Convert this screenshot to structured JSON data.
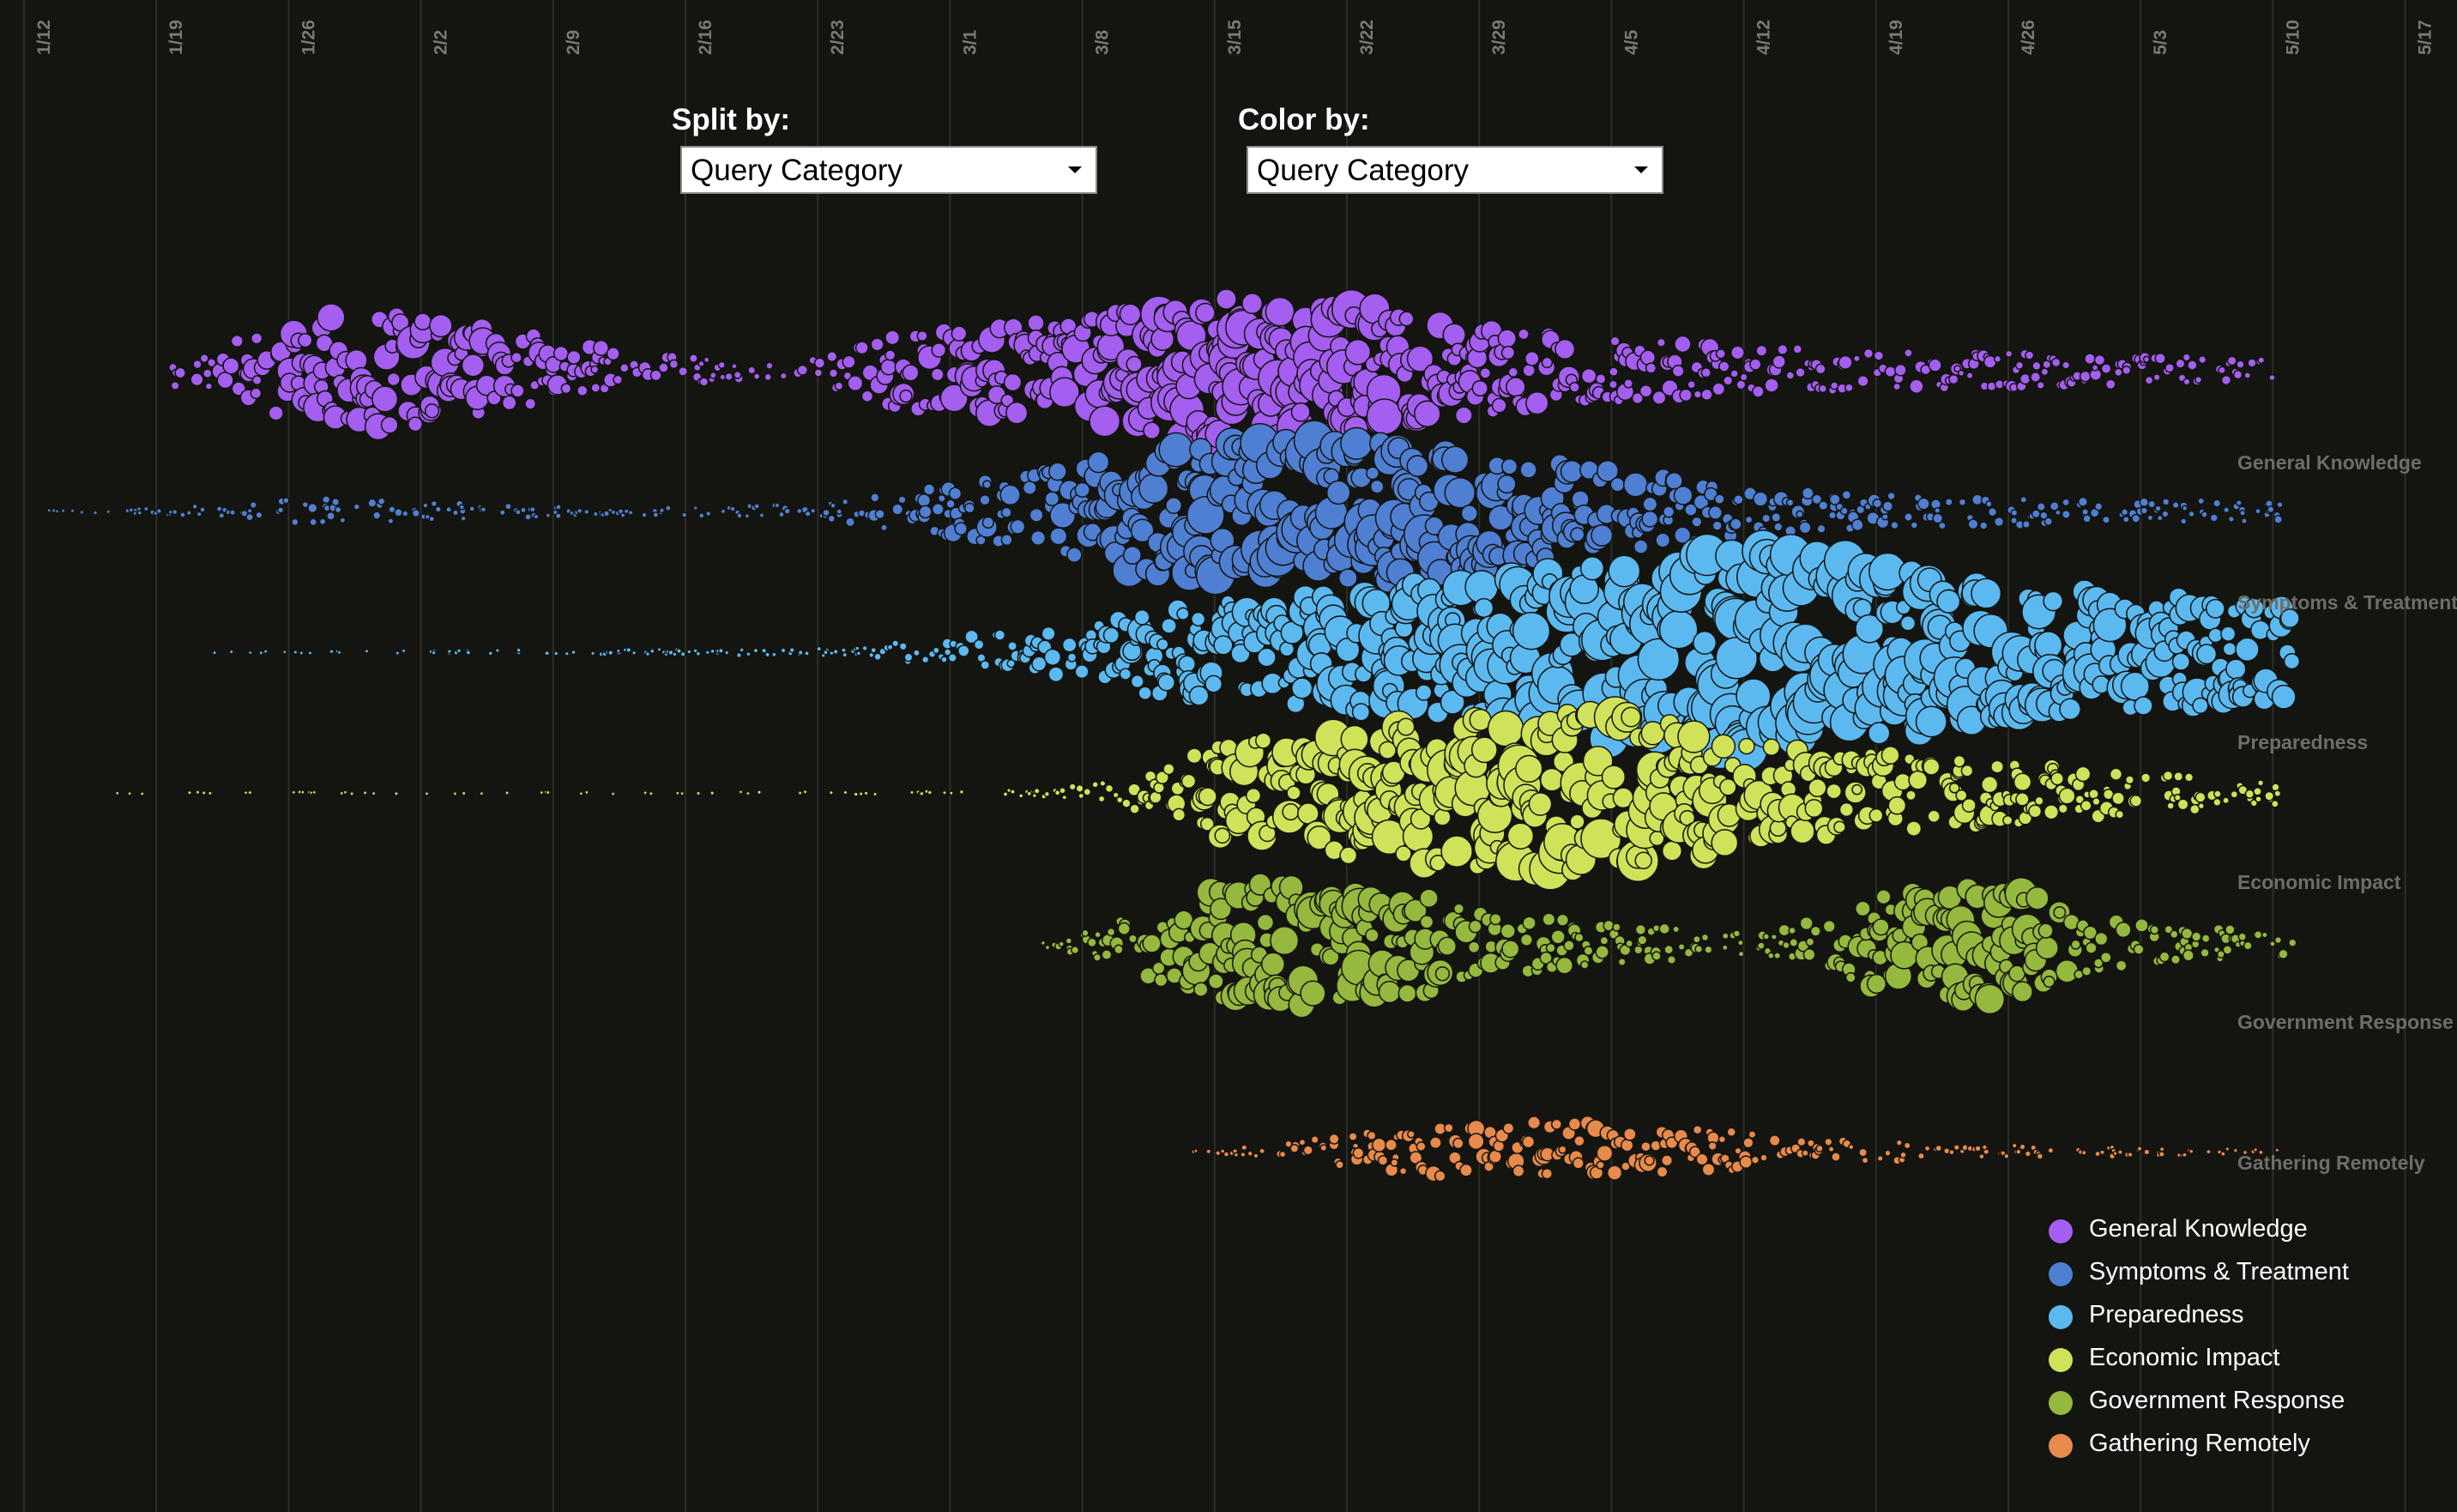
{
  "controls": {
    "split_label": "Split by:",
    "split_value": "Query Category",
    "color_label": "Color by:",
    "color_value": "Query Category"
  },
  "chart_data": {
    "type": "scatter",
    "subtype": "beeswarm",
    "x_axis": {
      "type": "date",
      "tick_labels": [
        "1/12",
        "1/19",
        "1/26",
        "2/2",
        "2/9",
        "2/16",
        "2/23",
        "3/1",
        "3/8",
        "3/15",
        "3/22",
        "3/29",
        "4/5",
        "4/12",
        "4/19",
        "4/26",
        "5/3",
        "5/10",
        "5/17"
      ],
      "range": [
        "1/12",
        "5/17"
      ],
      "label_position": "top",
      "grid": true
    },
    "legend_position": "bottom-right",
    "series": [
      {
        "name": "General Knowledge",
        "color": "#a45ef0",
        "activity": [
          [
            1.0,
            0.75
          ],
          [
            1.5,
            1.6
          ],
          [
            2.0,
            2.7
          ],
          [
            2.5,
            3.0
          ],
          [
            3.0,
            2.9
          ],
          [
            3.5,
            2.2
          ],
          [
            4.0,
            1.6
          ],
          [
            4.5,
            1.0
          ],
          [
            5.0,
            0.7
          ],
          [
            5.5,
            0.5
          ],
          [
            6.0,
            0.9
          ],
          [
            6.5,
            1.9
          ],
          [
            7.0,
            2.4
          ],
          [
            7.5,
            2.5
          ],
          [
            8.0,
            2.9
          ],
          [
            8.5,
            3.5
          ],
          [
            9.0,
            3.8
          ],
          [
            9.5,
            3.9
          ],
          [
            10.0,
            3.5
          ],
          [
            10.5,
            2.8
          ],
          [
            11.0,
            2.2
          ],
          [
            11.5,
            1.9
          ],
          [
            12.0,
            1.6
          ],
          [
            12.5,
            1.4
          ],
          [
            13.0,
            1.3
          ],
          [
            13.5,
            1.1
          ],
          [
            14.0,
            1.0
          ],
          [
            14.5,
            0.95
          ],
          [
            15.0,
            0.9
          ],
          [
            15.5,
            0.85
          ],
          [
            16.0,
            0.8
          ],
          [
            16.5,
            0.7
          ],
          [
            16.95,
            0.55
          ]
        ]
      },
      {
        "name": "Symptoms & Treatment",
        "color": "#4f7fd2",
        "activity": [
          [
            0.1,
            0.05
          ],
          [
            0.6,
            0.1
          ],
          [
            1.0,
            0.2
          ],
          [
            1.5,
            0.35
          ],
          [
            2.0,
            0.65
          ],
          [
            2.5,
            0.6
          ],
          [
            3.0,
            0.45
          ],
          [
            3.5,
            0.35
          ],
          [
            4.0,
            0.25
          ],
          [
            4.5,
            0.2
          ],
          [
            5.0,
            0.25
          ],
          [
            5.5,
            0.3
          ],
          [
            6.0,
            0.45
          ],
          [
            6.5,
            1.0
          ],
          [
            7.0,
            1.5
          ],
          [
            7.5,
            2.0
          ],
          [
            8.0,
            2.8
          ],
          [
            8.5,
            3.5
          ],
          [
            9.0,
            3.7
          ],
          [
            9.5,
            3.8
          ],
          [
            10.0,
            3.7
          ],
          [
            10.5,
            3.5
          ],
          [
            11.0,
            3.0
          ],
          [
            11.5,
            2.6
          ],
          [
            12.0,
            2.1
          ],
          [
            12.5,
            1.6
          ],
          [
            13.0,
            1.2
          ],
          [
            13.5,
            1.0
          ],
          [
            14.0,
            0.9
          ],
          [
            14.5,
            0.8
          ],
          [
            15.0,
            0.7
          ],
          [
            15.5,
            0.6
          ],
          [
            16.0,
            0.55
          ],
          [
            16.5,
            0.55
          ],
          [
            17.0,
            0.5
          ]
        ]
      },
      {
        "name": "Preparedness",
        "color": "#5cb9f0",
        "activity": [
          [
            1.15,
            0.05
          ],
          [
            1.6,
            0.05
          ],
          [
            2.05,
            0.05
          ],
          [
            6.2,
            0.2
          ],
          [
            6.5,
            0.5
          ],
          [
            7.0,
            0.9
          ],
          [
            7.5,
            1.2
          ],
          [
            8.0,
            1.7
          ],
          [
            8.5,
            2.4
          ],
          [
            9.0,
            2.7
          ],
          [
            9.5,
            2.9
          ],
          [
            10.0,
            3.3
          ],
          [
            10.5,
            3.6
          ],
          [
            11.0,
            4.0
          ],
          [
            11.5,
            4.5
          ],
          [
            12.0,
            5.0
          ],
          [
            12.5,
            5.6
          ],
          [
            13.0,
            5.6
          ],
          [
            13.5,
            5.1
          ],
          [
            14.0,
            4.4
          ],
          [
            14.5,
            3.9
          ],
          [
            15.0,
            3.5
          ],
          [
            15.5,
            3.3
          ],
          [
            16.0,
            3.0
          ],
          [
            16.5,
            2.8
          ],
          [
            17.05,
            2.5
          ]
        ]
      },
      {
        "name": "Economic Impact",
        "color": "#cfe25a",
        "activity": [
          [
            0.6,
            0.05
          ],
          [
            1.3,
            0.05
          ],
          [
            2.0,
            0.05
          ],
          [
            2.6,
            0.05
          ],
          [
            3.1,
            0.05
          ],
          [
            3.6,
            0.05
          ],
          [
            4.1,
            0.05
          ],
          [
            4.6,
            0.05
          ],
          [
            5.0,
            0.05
          ],
          [
            7.25,
            0.1
          ],
          [
            7.8,
            0.3
          ],
          [
            8.2,
            0.7
          ],
          [
            8.5,
            1.5
          ],
          [
            9.0,
            2.6
          ],
          [
            9.5,
            3.0
          ],
          [
            10.0,
            3.5
          ],
          [
            10.5,
            3.8
          ],
          [
            11.0,
            3.9
          ],
          [
            11.5,
            4.2
          ],
          [
            12.0,
            4.1
          ],
          [
            12.5,
            3.5
          ],
          [
            13.0,
            2.8
          ],
          [
            13.5,
            2.3
          ],
          [
            14.0,
            2.0
          ],
          [
            14.5,
            1.8
          ],
          [
            15.0,
            1.6
          ],
          [
            15.5,
            1.3
          ],
          [
            16.0,
            1.0
          ],
          [
            16.5,
            0.8
          ],
          [
            16.95,
            0.6
          ]
        ]
      },
      {
        "name": "Government Response",
        "color": "#95b83e",
        "activity": [
          [
            7.6,
            0.2
          ],
          [
            8.0,
            0.8
          ],
          [
            8.5,
            2.0
          ],
          [
            9.0,
            3.0
          ],
          [
            9.5,
            3.4
          ],
          [
            10.0,
            3.2
          ],
          [
            10.5,
            2.6
          ],
          [
            11.0,
            1.6
          ],
          [
            11.5,
            1.4
          ],
          [
            12.0,
            1.0
          ],
          [
            12.5,
            0.8
          ],
          [
            13.0,
            0.5
          ],
          [
            13.5,
            1.3
          ],
          [
            14.0,
            2.6
          ],
          [
            14.5,
            3.1
          ],
          [
            15.0,
            2.9
          ],
          [
            15.5,
            1.5
          ],
          [
            16.0,
            1.0
          ],
          [
            16.5,
            0.8
          ],
          [
            17.05,
            0.6
          ]
        ]
      },
      {
        "name": "Gathering Remotely",
        "color": "#e78a4b",
        "activity": [
          [
            8.7,
            0.05
          ],
          [
            9.2,
            0.3
          ],
          [
            9.7,
            0.7
          ],
          [
            10.2,
            1.1
          ],
          [
            10.7,
            1.4
          ],
          [
            11.2,
            1.6
          ],
          [
            11.7,
            1.6
          ],
          [
            12.2,
            1.4
          ],
          [
            12.7,
            1.1
          ],
          [
            13.2,
            0.8
          ],
          [
            13.7,
            0.6
          ],
          [
            14.2,
            0.45
          ],
          [
            14.7,
            0.35
          ],
          [
            15.2,
            0.3
          ],
          [
            15.7,
            0.25
          ],
          [
            16.2,
            0.2
          ],
          [
            16.7,
            0.15
          ],
          [
            16.95,
            0.1
          ]
        ]
      }
    ]
  }
}
